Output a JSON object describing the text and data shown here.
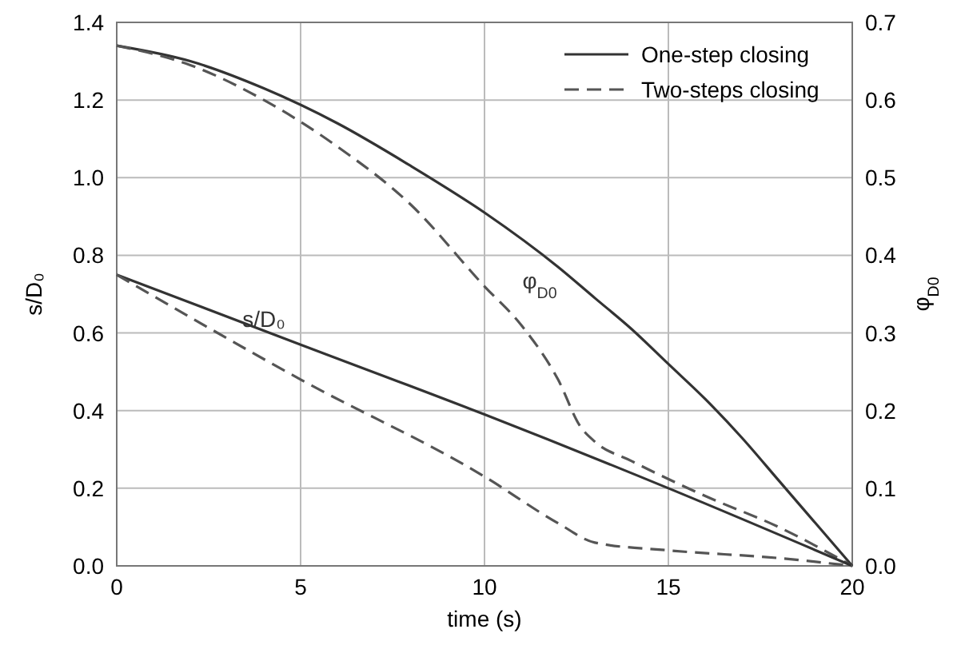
{
  "chart_data": {
    "type": "line",
    "xlabel": "time (s)",
    "ylabel": "s/D₀",
    "y2label": "φ$_{D0}$",
    "xlim": [
      0,
      20
    ],
    "xticks": [
      0,
      5,
      10,
      15,
      20
    ],
    "ylim": [
      0,
      1.4
    ],
    "yticks": [
      {
        "value": 0,
        "label": "0.0"
      },
      {
        "value": 0.2,
        "label": "0.2"
      },
      {
        "value": 0.4,
        "label": "0.4"
      },
      {
        "value": 0.6,
        "label": "0.6"
      },
      {
        "value": 0.8,
        "label": "0.8"
      },
      {
        "value": 1,
        "label": "1.0"
      },
      {
        "value": 1.2,
        "label": "1.2"
      },
      {
        "value": 1.4,
        "label": "1.4"
      }
    ],
    "y2lim": [
      0,
      0.7
    ],
    "y2ticks": [
      {
        "value": 0,
        "label": "0.0"
      },
      {
        "value": 0.1,
        "label": "0.1"
      },
      {
        "value": 0.2,
        "label": "0.2"
      },
      {
        "value": 0.3,
        "label": "0.3"
      },
      {
        "value": 0.4,
        "label": "0.4"
      },
      {
        "value": 0.5,
        "label": "0.5"
      },
      {
        "value": 0.6,
        "label": "0.6"
      },
      {
        "value": 0.7,
        "label": "0.7"
      }
    ],
    "grid": true,
    "legend": "top right",
    "series": [
      {
        "name": "One-step closing",
        "color": "#333333",
        "line_style": "solid",
        "axis": "y2",
        "x": [
          0,
          2,
          4,
          6,
          8,
          10,
          12,
          13,
          14,
          15,
          16,
          17,
          18,
          19,
          20
        ],
        "values": [
          0.67,
          0.65,
          0.615,
          0.57,
          0.515,
          0.455,
          0.385,
          0.345,
          0.305,
          0.26,
          0.215,
          0.165,
          0.11,
          0.055,
          0
        ]
      },
      {
        "name": "Two-steps closing",
        "color": "#555555",
        "line_style": "dashed",
        "axis": "y2",
        "x": [
          0,
          2,
          4,
          6,
          8,
          10,
          11,
          12,
          12.6,
          13,
          14,
          16,
          18,
          20
        ],
        "values": [
          0.67,
          0.645,
          0.6,
          0.54,
          0.465,
          0.36,
          0.31,
          0.24,
          0.18,
          0.16,
          0.135,
          0.09,
          0.05,
          0
        ]
      },
      {
        "color": "#333333",
        "line_style": "solid",
        "x": [
          0,
          5,
          10,
          15,
          20
        ],
        "values": [
          0.75,
          0.57,
          0.39,
          0.2,
          0
        ]
      },
      {
        "color": "#555555",
        "line_style": "dashed",
        "x": [
          0,
          5,
          10,
          12,
          13,
          15,
          18,
          20
        ],
        "values": [
          0.75,
          0.48,
          0.23,
          0.11,
          0.06,
          0.04,
          0.02,
          0
        ]
      }
    ],
    "annotations": [
      "s/D₀",
      "φ$_{D0}$"
    ]
  }
}
